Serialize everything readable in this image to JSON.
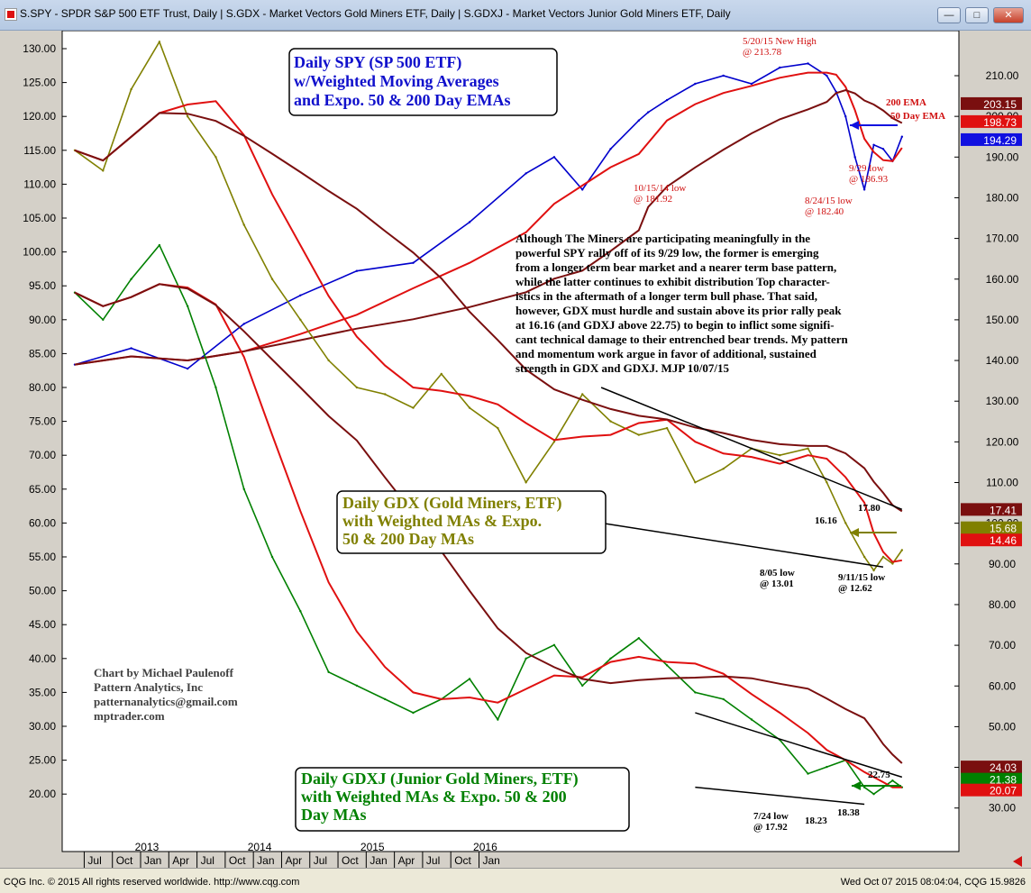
{
  "window": {
    "title": "S.SPY - SPDR S&P 500 ETF Trust, Daily   |  S.GDX - Market Vectors Gold Miners ETF, Daily   |  S.GDXJ - Market Vectors Junior Gold Miners ETF, Daily",
    "minimize_label": "—",
    "maximize_label": "□",
    "close_label": "✕"
  },
  "status": {
    "copyright": "CQG Inc. © 2015 All rights reserved worldwide. http://www.cqg.com",
    "timestamp": "Wed Oct 07 2015 08:04:04, CQG 15.9826"
  },
  "chart_data": {
    "type": "line",
    "x_labels": [
      "Jul",
      "Oct",
      "Jan",
      "Apr",
      "Jul",
      "Oct",
      "Jan",
      "Apr",
      "Jul",
      "Oct",
      "Jan",
      "Apr",
      "Jul",
      "Oct",
      "Jan"
    ],
    "year_labels": [
      "2013",
      "2014",
      "2015",
      "2016"
    ],
    "left_axis": {
      "ticks": [
        130,
        125,
        120,
        115,
        110,
        105,
        100,
        95,
        90,
        85,
        80,
        75,
        70,
        65,
        60,
        55,
        50,
        45,
        40,
        35,
        30,
        25,
        20
      ],
      "labels": [
        "130.00",
        "125.00",
        "120.00",
        "115.00",
        "110.00",
        "105.00",
        "100.00",
        "95.00",
        "90.00",
        "85.00",
        "80.00",
        "75.00",
        "70.00",
        "65.00",
        "60.00",
        "55.00",
        "50.00",
        "45.00",
        "40.00",
        "35.00",
        "30.00",
        "25.00",
        "20.00"
      ]
    },
    "right_axis_spy": {
      "ticks": [
        210,
        200,
        190,
        180,
        170,
        160,
        150,
        140,
        130,
        120,
        110,
        100,
        90,
        80,
        70,
        60,
        50,
        40,
        30
      ]
    },
    "series": [
      {
        "name": "SPY",
        "color": "#0000cc",
        "x": [
          0,
          6,
          12,
          18,
          24,
          30,
          36,
          42,
          48,
          51,
          54,
          57,
          60,
          61,
          63,
          66,
          69,
          72,
          75,
          78,
          80,
          81,
          82,
          83,
          84,
          85,
          86,
          87,
          88
        ],
        "values": [
          139,
          143,
          138,
          149,
          156,
          162,
          164,
          174,
          186,
          190,
          182,
          192,
          199,
          201,
          204,
          208,
          210,
          208,
          212,
          213,
          210,
          206,
          200,
          190,
          182,
          193,
          192,
          189,
          195
        ]
      },
      {
        "name": "GDX",
        "color": "#808000",
        "x": [
          0,
          3,
          6,
          9,
          12,
          15,
          18,
          21,
          24,
          27,
          30,
          33,
          36,
          39,
          42,
          45,
          48,
          51,
          54,
          57,
          60,
          63,
          66,
          69,
          72,
          75,
          78,
          80,
          82,
          84,
          85,
          86,
          87,
          88
        ],
        "values": [
          115,
          112,
          124,
          131,
          120,
          114,
          104,
          96,
          90,
          84,
          80,
          79,
          77,
          82,
          77,
          74,
          66,
          72,
          79,
          75,
          73,
          74,
          66,
          68,
          71,
          70,
          71,
          66,
          60,
          55,
          53,
          55,
          54,
          56
        ]
      },
      {
        "name": "GDXJ",
        "color": "#008000",
        "x": [
          0,
          3,
          6,
          9,
          12,
          15,
          18,
          21,
          24,
          27,
          30,
          33,
          36,
          39,
          42,
          45,
          48,
          51,
          54,
          57,
          60,
          63,
          66,
          69,
          72,
          75,
          78,
          80,
          82,
          84,
          85,
          86,
          87,
          88
        ],
        "values": [
          94,
          90,
          96,
          101,
          92,
          80,
          65,
          55,
          47,
          38,
          36,
          34,
          32,
          34,
          37,
          31,
          40,
          42,
          36,
          40,
          43,
          39,
          35,
          34,
          31,
          28,
          23,
          24,
          25,
          21,
          20,
          21,
          22,
          21
        ]
      }
    ],
    "value_tags": [
      {
        "label": "203.15",
        "color": "#7a0f0f"
      },
      {
        "label": "198.73",
        "color": "#e01010"
      },
      {
        "label": "194.29",
        "color": "#1010e0"
      },
      {
        "label": "17.41",
        "color": "#7a0f0f"
      },
      {
        "label": "15.68",
        "color": "#808000"
      },
      {
        "label": "14.46",
        "color": "#e01010"
      },
      {
        "label": "24.03",
        "color": "#7a0f0f"
      },
      {
        "label": "21.38",
        "color": "#008000"
      },
      {
        "label": "20.07",
        "color": "#e01010"
      }
    ],
    "annotations": {
      "spy_box": "Daily SPY (SP 500 ETF)\nw/Weighted Moving Averages\nand Expo. 50 & 200 Day EMAs",
      "gdx_box": "Daily GDX (Gold Miners, ETF)\nwith Weighted MAs & Expo.\n50 & 200 Day MAs",
      "gdxj_box": "Daily GDXJ (Junior Gold Miners, ETF)\nwith Weighted MAs & Expo. 50 & 200\nDay MAs",
      "high": "5/20/15 New High\n@ 213.78",
      "ema200": "200 EMA",
      "ema50": "50 Day EMA",
      "low_1014": "10/15/14 low\n@ 181.92",
      "low_0824": "8/24/15 low\n@ 182.40",
      "low_0929": "9/29 low\n@ 186.93",
      "commentary": "Although The Miners are participating meaningfully in the\npowerful SPY rally off of its 9/29 low, the former is emerging\nfrom a longer term bear market and a nearer term base pattern,\nwhile the latter continues to exhibit distribution Top character-\nistics in the aftermath of a longer term bull phase.  That said,\nhowever, GDX must hurdle and sustain above its prior rally peak\nat 16.16 (and GDXJ above 22.75) to begin to inflict some signifi-\ncant technical damage to their entrenched bear trends. My pattern\nand momentum work argue in favor of additional, sustained\nstrength in GDX and GDXJ. MJP  10/07/15",
      "gdx_1780": "17.80",
      "gdx_1616": "16.16",
      "gdx_low_0805": "8/05 low\n@ 13.01",
      "gdx_low_0911": "9/11/15 low\n@ 12.62",
      "gdxj_2275": "22.75",
      "gdxj_low_0724": "7/24 low\n@ 17.92",
      "gdxj_1823": "18.23",
      "gdxj_1838": "18.38",
      "credit": "Chart by Michael Paulenoff\nPattern Analytics, Inc\npatternanalytics@gmail.com\nmptrader.com"
    }
  }
}
